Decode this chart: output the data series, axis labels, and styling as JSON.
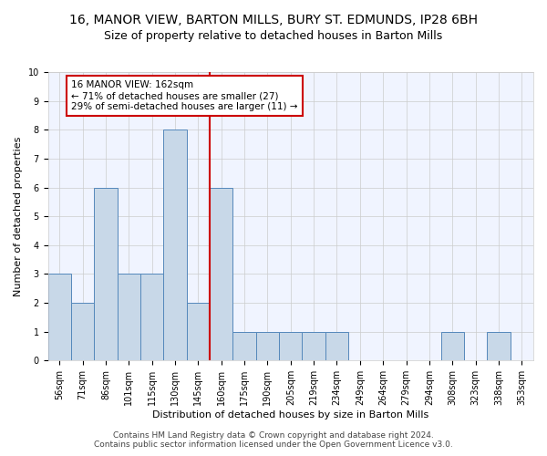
{
  "title_line1": "16, MANOR VIEW, BARTON MILLS, BURY ST. EDMUNDS, IP28 6BH",
  "title_line2": "Size of property relative to detached houses in Barton Mills",
  "xlabel": "Distribution of detached houses by size in Barton Mills",
  "ylabel": "Number of detached properties",
  "bin_labels": [
    "56sqm",
    "71sqm",
    "86sqm",
    "101sqm",
    "115sqm",
    "130sqm",
    "145sqm",
    "160sqm",
    "175sqm",
    "190sqm",
    "205sqm",
    "219sqm",
    "234sqm",
    "249sqm",
    "264sqm",
    "279sqm",
    "294sqm",
    "308sqm",
    "323sqm",
    "338sqm",
    "353sqm"
  ],
  "bar_values": [
    3,
    2,
    6,
    3,
    3,
    8,
    2,
    6,
    1,
    1,
    1,
    1,
    1,
    0,
    0,
    0,
    0,
    1,
    0,
    1,
    0
  ],
  "bar_color": "#c8d8e8",
  "bar_edge_color": "#5588bb",
  "subject_bin_index": 7,
  "annotation_line1": "16 MANOR VIEW: 162sqm",
  "annotation_line2": "← 71% of detached houses are smaller (27)",
  "annotation_line3": "29% of semi-detached houses are larger (11) →",
  "ylim": [
    0,
    10
  ],
  "yticks": [
    0,
    1,
    2,
    3,
    4,
    5,
    6,
    7,
    8,
    9,
    10
  ],
  "red_line_color": "#cc0000",
  "annotation_box_edge": "#cc0000",
  "footer_line1": "Contains HM Land Registry data © Crown copyright and database right 2024.",
  "footer_line2": "Contains public sector information licensed under the Open Government Licence v3.0.",
  "title_fontsize": 10,
  "subtitle_fontsize": 9,
  "axis_label_fontsize": 8,
  "tick_fontsize": 7,
  "annotation_fontsize": 7.5,
  "footer_fontsize": 6.5
}
